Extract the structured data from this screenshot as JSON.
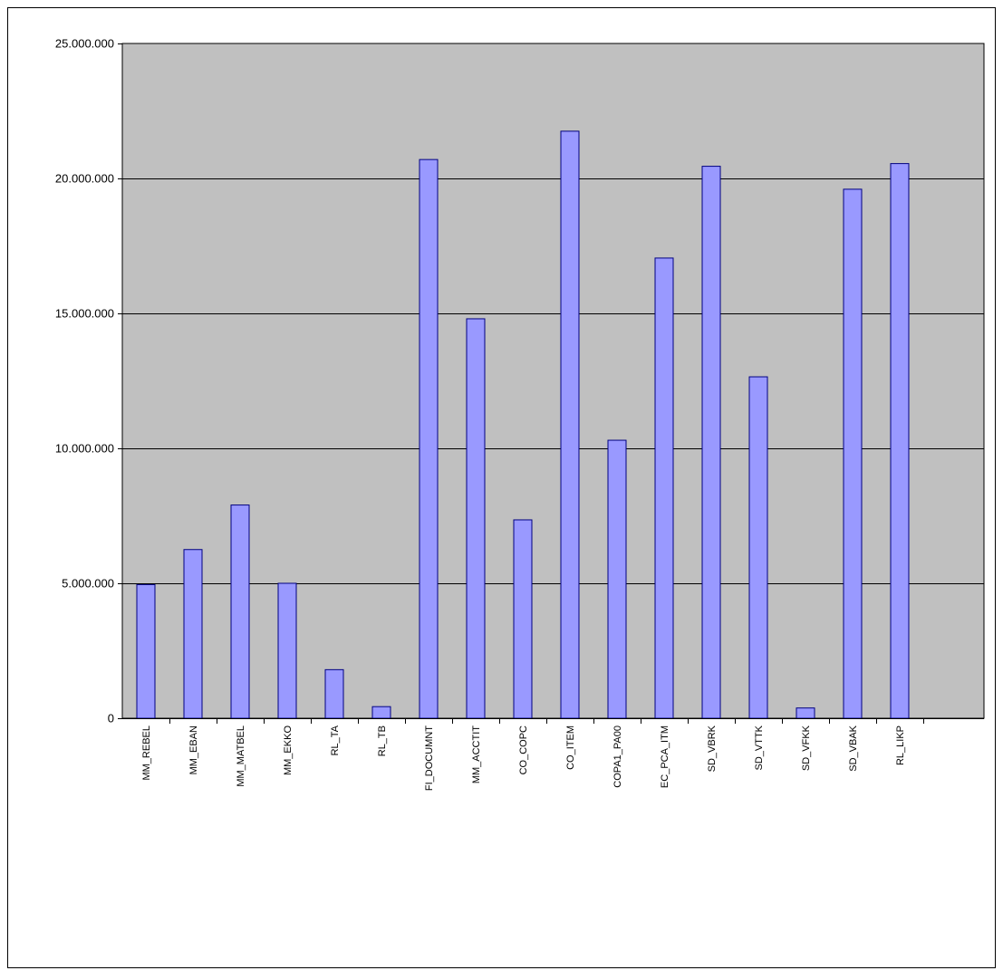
{
  "chart_data": {
    "type": "bar",
    "title": "",
    "xlabel": "",
    "ylabel": "",
    "ylim": [
      0,
      25000000
    ],
    "yticks": [
      0,
      5000000,
      10000000,
      15000000,
      20000000,
      25000000
    ],
    "ytick_labels": [
      "0",
      "5.000.000",
      "10.000.000",
      "15.000.000",
      "20.000.000",
      "25.000.000"
    ],
    "grid": true,
    "legend": "none",
    "categories": [
      "MM_REBEL",
      "MM_EBAN",
      "MM_MATBEL",
      "MM_EKKO",
      "RL_TA",
      "RL_TB",
      "FI_DOCUMNT",
      "MM_ACCTIT",
      "CO_COPC",
      "CO_ITEM",
      "COPA1_PA00",
      "EC_PCA_ITM",
      "SD_VBRK",
      "SD_VTTK",
      "SD_VFKK",
      "SD_VBAK",
      "RL_LIKP"
    ],
    "values": [
      4950000,
      6250000,
      7900000,
      5000000,
      1800000,
      430000,
      20700000,
      14800000,
      7350000,
      21750000,
      10300000,
      17050000,
      20450000,
      12650000,
      380000,
      19600000,
      20550000
    ],
    "colors": {
      "bar_fill": "#9999ff",
      "bar_stroke": "#000080",
      "plot_bg": "#c0c0c0",
      "grid": "#000000",
      "frame": "#000000"
    }
  }
}
